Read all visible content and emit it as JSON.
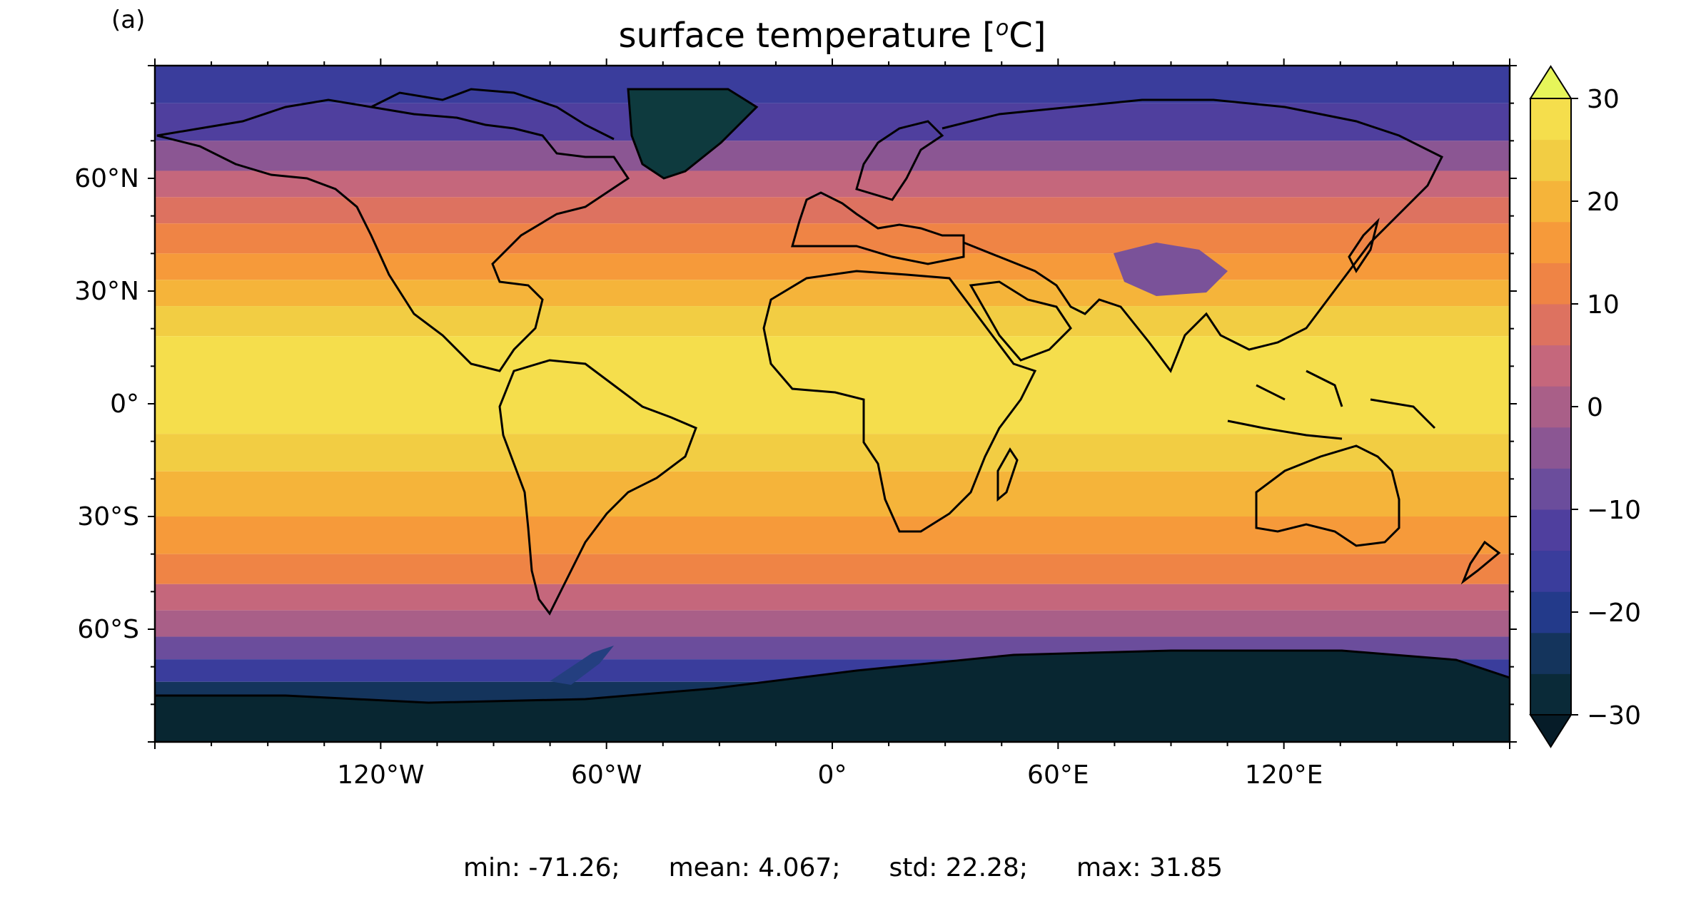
{
  "panel_label": "(a)",
  "title": {
    "text": "surface temperature [",
    "unit_sup": "o",
    "unit_tail": "C]"
  },
  "map": {
    "projection": "PlateCarree",
    "lon_range": [
      -180,
      180
    ],
    "lat_range": [
      -90,
      90
    ],
    "lon_ticks": [
      {
        "value": -120,
        "label": "120°W"
      },
      {
        "value": -60,
        "label": "60°W"
      },
      {
        "value": 0,
        "label": "0°"
      },
      {
        "value": 60,
        "label": "60°E"
      },
      {
        "value": 120,
        "label": "120°E"
      }
    ],
    "lat_ticks": [
      {
        "value": 60,
        "label": "60°N"
      },
      {
        "value": 30,
        "label": "30°N"
      },
      {
        "value": 0,
        "label": "0°"
      },
      {
        "value": -30,
        "label": "30°S"
      },
      {
        "value": -60,
        "label": "60°S"
      }
    ],
    "coastlines": true
  },
  "colorbar": {
    "colormap": "thermal",
    "range": [
      -30,
      30
    ],
    "step": 5,
    "extend": "both",
    "tick_labels": [
      "30",
      "20",
      "10",
      "0",
      "−10",
      "−20",
      "−30"
    ],
    "tick_values": [
      30,
      20,
      10,
      0,
      -10,
      -20,
      -30
    ],
    "colors": [
      "#0a2a38",
      "#14345c",
      "#233a8a",
      "#3a3d9c",
      "#4f3f9e",
      "#6b4d9c",
      "#8b5693",
      "#a95f88",
      "#c5677c",
      "#dd7260",
      "#ef8445",
      "#f69a3a",
      "#f5b43a",
      "#f2cd43",
      "#f5de4c"
    ],
    "over_color": "#e6f55a",
    "under_color": "#061c28"
  },
  "stats": {
    "min": "min: -71.26;",
    "mean": "mean: 4.067;",
    "std": "std: 22.28;",
    "max": "max: 31.85"
  }
}
